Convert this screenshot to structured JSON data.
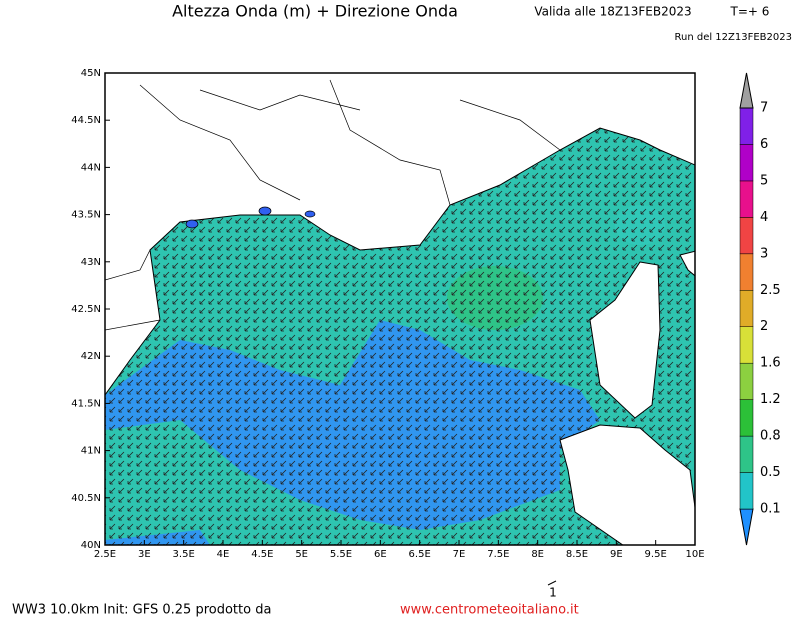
{
  "header": {
    "title": "Altezza Onda (m) + Direzione Onda",
    "valid": "Valida alle 18Z13FEB2023",
    "step": "T=+ 6",
    "run": "Run del 12Z13FEB2023"
  },
  "map": {
    "lat_ticks": [
      {
        "value": 45,
        "label": "45N"
      },
      {
        "value": 44.5,
        "label": "44.5N"
      },
      {
        "value": 44,
        "label": "44N"
      },
      {
        "value": 43.5,
        "label": "43.5N"
      },
      {
        "value": 43,
        "label": "43N"
      },
      {
        "value": 42.5,
        "label": "42.5N"
      },
      {
        "value": 42,
        "label": "42N"
      },
      {
        "value": 41.5,
        "label": "41.5N"
      },
      {
        "value": 41,
        "label": "41N"
      },
      {
        "value": 40.5,
        "label": "40.5N"
      },
      {
        "value": 40,
        "label": "40N"
      }
    ],
    "lon_ticks": [
      {
        "value": 2.5,
        "label": "2.5E"
      },
      {
        "value": 3,
        "label": "3E"
      },
      {
        "value": 3.5,
        "label": "3.5E"
      },
      {
        "value": 4,
        "label": "4E"
      },
      {
        "value": 4.5,
        "label": "4.5E"
      },
      {
        "value": 5,
        "label": "5E"
      },
      {
        "value": 5.5,
        "label": "5.5E"
      },
      {
        "value": 6,
        "label": "6E"
      },
      {
        "value": 6.5,
        "label": "6.5E"
      },
      {
        "value": 7,
        "label": "7E"
      },
      {
        "value": 7.5,
        "label": "7.5E"
      },
      {
        "value": 8,
        "label": "8E"
      },
      {
        "value": 8.5,
        "label": "8.5E"
      },
      {
        "value": 9,
        "label": "9E"
      },
      {
        "value": 9.5,
        "label": "9.5E"
      },
      {
        "value": 10,
        "label": "10E"
      }
    ],
    "reference_vector": 1
  },
  "colorbar": {
    "levels": [
      0.1,
      0.5,
      0.8,
      1.2,
      1.6,
      2,
      2.5,
      3,
      4,
      5,
      6,
      7
    ],
    "colors": [
      "#1e90ff",
      "#22c4c8",
      "#2ec488",
      "#2cc038",
      "#8cd040",
      "#d8e038",
      "#e0ac28",
      "#f08030",
      "#f04444",
      "#e8108c",
      "#b000c8",
      "#8020e8",
      "#a0a0a0"
    ]
  },
  "footer": {
    "model": "WW3 10.0km Init: GFS 0.25 prodotto da",
    "website": "www.centrometeoitaliano.it"
  }
}
